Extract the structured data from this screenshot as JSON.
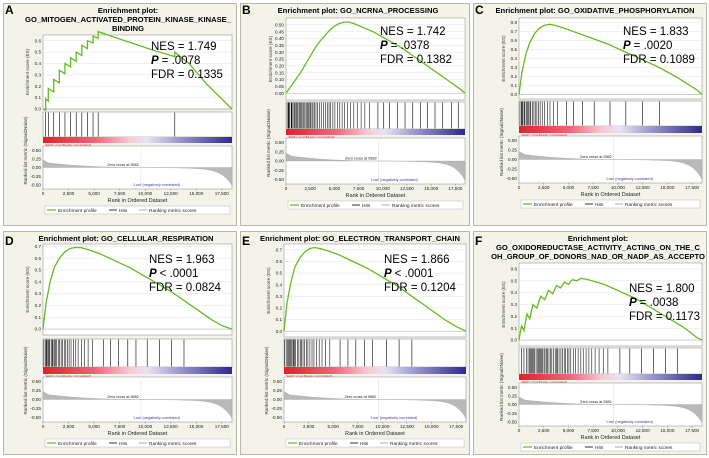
{
  "figure": {
    "accent_line_color": "#66bb22",
    "legend": {
      "enrichment_profile": "Enrichment profile",
      "hits": "Hits",
      "ranking": "Ranking metric scores"
    },
    "axis": {
      "enrichment_ylabel": "Enrichment score (ES)",
      "metric_ylabel": "Ranked list metric (Signal2Noise)",
      "xlabel": "Rank in Ordered Dataset",
      "high_label": "'High' (positively correlated)",
      "low_label": "'Low' (negatively correlated)",
      "zero_cross": "Zero cross at 9582"
    }
  },
  "chart_data": [
    {
      "type": "line",
      "letter": "A",
      "title_lines": [
        "Enrichment plot:",
        "GO_MITOGEN_ACTIVATED_PROTEIN_KINASE_KINASE_",
        "BINDING"
      ],
      "nes": "NES = 1.749",
      "p_label": "P",
      "p_value": "= .0078",
      "fdr": "FDR = 0.1335",
      "ylim": [
        0,
        0.65
      ],
      "yticks": [
        "0.0",
        "0.1",
        "0.2",
        "0.3",
        "0.4",
        "0.5",
        "0.6"
      ],
      "ytick_values": [
        0,
        0.1,
        0.2,
        0.3,
        0.4,
        0.5,
        0.6
      ],
      "xticks": [
        "0",
        "2,500",
        "5,000",
        "7,500",
        "10,000",
        "12,500",
        "15,000",
        "17,500"
      ],
      "xtick_values": [
        0,
        2500,
        5000,
        7500,
        10000,
        12500,
        15000,
        17500
      ],
      "xmax": 18500,
      "metric_ticks": [
        "0.50",
        "0.25",
        "0.00",
        "-0.25",
        "-0.50"
      ],
      "metric_tick_values": [
        0.5,
        0.25,
        0,
        -0.25,
        -0.5
      ],
      "es_x": [
        0,
        260,
        260,
        520,
        520,
        1050,
        1050,
        1600,
        1600,
        2150,
        2150,
        2700,
        2700,
        3250,
        3250,
        3800,
        3800,
        4350,
        4350,
        4900,
        4900,
        5400,
        5400,
        7000,
        9000,
        11000,
        12900,
        12900,
        14300,
        16000,
        18500
      ],
      "es_y": [
        0,
        -0.01,
        0.09,
        0.07,
        0.18,
        0.15,
        0.26,
        0.23,
        0.34,
        0.31,
        0.4,
        0.37,
        0.45,
        0.42,
        0.5,
        0.47,
        0.56,
        0.53,
        0.6,
        0.58,
        0.64,
        0.62,
        0.68,
        0.63,
        0.57,
        0.51,
        0.46,
        0.5,
        0.4,
        0.22,
        0.0
      ],
      "hits": [
        260,
        520,
        1050,
        1600,
        2150,
        2700,
        3250,
        3800,
        4350,
        4900,
        5400,
        12900
      ]
    },
    {
      "type": "line",
      "letter": "B",
      "title_lines": [
        "Enrichment plot: GO_NCRNA_PROCESSING"
      ],
      "nes": "NES = 1.742",
      "p_label": "P",
      "p_value": "= .0378",
      "fdr": "FDR = 0.1382",
      "ylim": [
        -0.05,
        0.55
      ],
      "yticks": [
        "0.00",
        "0.05",
        "0.10",
        "0.15",
        "0.20",
        "0.25",
        "0.30",
        "0.35",
        "0.40",
        "0.45",
        "0.50"
      ],
      "ytick_values": [
        0,
        0.05,
        0.1,
        0.15,
        0.2,
        0.25,
        0.3,
        0.35,
        0.4,
        0.45,
        0.5
      ],
      "xticks": [
        "0",
        "2,500",
        "5,000",
        "7,500",
        "10,000",
        "12,500",
        "15,000",
        "17,500"
      ],
      "xtick_values": [
        0,
        2500,
        5000,
        7500,
        10000,
        12500,
        15000,
        17500
      ],
      "xmax": 18500,
      "metric_ticks": [
        "0.50",
        "0.25",
        "0.00",
        "-0.25",
        "-0.50"
      ],
      "metric_tick_values": [
        0.5,
        0.25,
        0,
        -0.25,
        -0.5
      ],
      "es_x": [
        0,
        500,
        1000,
        1500,
        2000,
        2500,
        3000,
        3500,
        4000,
        4500,
        5000,
        5500,
        6000,
        6500,
        7000,
        8000,
        9000,
        10000,
        11000,
        12000,
        13000,
        14000,
        15000,
        16000,
        17000,
        18000,
        18500
      ],
      "es_y": [
        0,
        0.05,
        0.1,
        0.15,
        0.21,
        0.27,
        0.33,
        0.38,
        0.42,
        0.46,
        0.49,
        0.51,
        0.52,
        0.52,
        0.51,
        0.48,
        0.45,
        0.41,
        0.37,
        0.33,
        0.28,
        0.23,
        0.18,
        0.13,
        0.08,
        0.03,
        0.0
      ],
      "hits_dense": [
        0,
        9000
      ],
      "hits": [
        9500,
        10100,
        10700,
        11500,
        12300,
        13100,
        13900,
        14600,
        15400,
        16200,
        17100,
        17800
      ]
    },
    {
      "type": "line",
      "letter": "C",
      "title_lines": [
        "Enrichment plot: GO_OXIDATIVE_PHOSPHORYLATION"
      ],
      "nes": "NES = 1.833",
      "p_label": "P",
      "p_value": "= .0020",
      "fdr": "FDR = 0.1089",
      "ylim": [
        -0.05,
        0.85
      ],
      "yticks": [
        "0.0",
        "0.1",
        "0.2",
        "0.3",
        "0.4",
        "0.5",
        "0.6",
        "0.7",
        "0.8"
      ],
      "ytick_values": [
        0,
        0.1,
        0.2,
        0.3,
        0.4,
        0.5,
        0.6,
        0.7,
        0.8
      ],
      "xticks": [
        "0",
        "2,500",
        "5,000",
        "7,500",
        "10,000",
        "12,500",
        "15,000",
        "17,500"
      ],
      "xtick_values": [
        0,
        2500,
        5000,
        7500,
        10000,
        12500,
        15000,
        17500
      ],
      "xmax": 18500,
      "metric_ticks": [
        "0.50",
        "0.25",
        "0.00",
        "-0.25",
        "-0.50"
      ],
      "metric_tick_values": [
        0.5,
        0.25,
        0,
        -0.25,
        -0.5
      ],
      "es_x": [
        0,
        300,
        700,
        1100,
        1600,
        2100,
        2600,
        3100,
        3600,
        4200,
        5000,
        6000,
        7000,
        8000,
        9000,
        10000,
        11000,
        12000,
        13000,
        14000,
        15000,
        16000,
        17000,
        18000,
        18500
      ],
      "es_y": [
        0,
        0.25,
        0.45,
        0.58,
        0.68,
        0.74,
        0.77,
        0.78,
        0.77,
        0.75,
        0.72,
        0.68,
        0.64,
        0.6,
        0.56,
        0.51,
        0.46,
        0.41,
        0.36,
        0.31,
        0.25,
        0.19,
        0.12,
        0.05,
        0.0
      ],
      "hits_dense": [
        0,
        4200
      ],
      "hits": [
        4800,
        5500,
        6400,
        7600,
        9200,
        10800,
        12500,
        14200
      ]
    },
    {
      "type": "line",
      "letter": "D",
      "title_lines": [
        "Enrichment plot: GO_CELLULAR_RESPIRATION"
      ],
      "nes": "NES = 1.963",
      "p_label": "P",
      "p_value": "< .0001",
      "fdr": "FDR = 0.0824",
      "ylim": [
        -0.05,
        0.72
      ],
      "yticks": [
        "0.0",
        "0.1",
        "0.2",
        "0.3",
        "0.4",
        "0.5",
        "0.6",
        "0.7"
      ],
      "ytick_values": [
        0,
        0.1,
        0.2,
        0.3,
        0.4,
        0.5,
        0.6,
        0.7
      ],
      "xticks": [
        "0",
        "2,500",
        "5,000",
        "7,500",
        "10,000",
        "12,500",
        "15,000",
        "17,500"
      ],
      "xtick_values": [
        0,
        2500,
        5000,
        7500,
        10000,
        12500,
        15000,
        17500
      ],
      "xmax": 18500,
      "metric_ticks": [
        "0.50",
        "0.25",
        "0.00",
        "-0.25",
        "-0.50"
      ],
      "metric_tick_values": [
        0.5,
        0.25,
        0,
        -0.25,
        -0.5
      ],
      "es_x": [
        0,
        300,
        700,
        1100,
        1600,
        2100,
        2600,
        3100,
        3700,
        4500,
        5500,
        6500,
        7500,
        8500,
        9500,
        10500,
        11500,
        12500,
        13500,
        14500,
        15500,
        16500,
        17500,
        18500
      ],
      "es_y": [
        0,
        0.22,
        0.4,
        0.52,
        0.6,
        0.65,
        0.68,
        0.69,
        0.69,
        0.67,
        0.64,
        0.6,
        0.56,
        0.52,
        0.47,
        0.42,
        0.37,
        0.32,
        0.26,
        0.2,
        0.14,
        0.08,
        0.03,
        0.0
      ],
      "hits_dense": [
        0,
        5200
      ],
      "hits": [
        5900,
        6600,
        7400,
        8300,
        9100,
        10200,
        11400,
        12600,
        13800
      ]
    },
    {
      "type": "line",
      "letter": "E",
      "title_lines": [
        "Enrichment plot: GO_ELECTRON_TRANSPORT_CHAIN"
      ],
      "nes": "NES = 1.866",
      "p_label": "P",
      "p_value": "< .0001",
      "fdr": "FDR = 0.1204",
      "ylim": [
        -0.05,
        0.75
      ],
      "yticks": [
        "0.0",
        "0.1",
        "0.2",
        "0.3",
        "0.4",
        "0.5",
        "0.6",
        "0.7"
      ],
      "ytick_values": [
        0,
        0.1,
        0.2,
        0.3,
        0.4,
        0.5,
        0.6,
        0.7
      ],
      "xticks": [
        "0",
        "2,500",
        "5,000",
        "7,500",
        "10,000",
        "12,500",
        "15,000",
        "17,500"
      ],
      "xtick_values": [
        0,
        2500,
        5000,
        7500,
        10000,
        12500,
        15000,
        17500
      ],
      "xmax": 18500,
      "metric_ticks": [
        "0.50",
        "0.25",
        "0.00",
        "-0.25",
        "-0.50"
      ],
      "metric_tick_values": [
        0.5,
        0.25,
        0,
        -0.25,
        -0.5
      ],
      "es_x": [
        0,
        300,
        700,
        1100,
        1600,
        2100,
        2600,
        3100,
        3700,
        4500,
        5500,
        6500,
        7500,
        8500,
        9500,
        10500,
        11500,
        12500,
        13500,
        14500,
        15500,
        16500,
        17500,
        18500
      ],
      "es_y": [
        0,
        0.24,
        0.42,
        0.55,
        0.63,
        0.68,
        0.71,
        0.72,
        0.71,
        0.69,
        0.66,
        0.62,
        0.58,
        0.54,
        0.49,
        0.44,
        0.39,
        0.33,
        0.27,
        0.21,
        0.15,
        0.09,
        0.04,
        0.0
      ],
      "hits_dense": [
        0,
        5000
      ],
      "hits": [
        5700,
        6500,
        7300,
        8200,
        9000,
        10400,
        11700,
        13000
      ]
    },
    {
      "type": "line",
      "letter": "F",
      "title_lines": [
        "Enrichment plot:",
        "GO_OXIDOREDUCTASE_ACTIVITY_ACTING_ON_THE_C",
        "OH_GROUP_OF_DONORS_NAD_OR_NADP_AS_ACCEPTO"
      ],
      "nes": "NES = 1.800",
      "p_label": "P",
      "p_value": "= .0038",
      "fdr": "FDR = 0.1173",
      "ylim": [
        -0.05,
        0.65
      ],
      "yticks": [
        "0.0",
        "0.1",
        "0.2",
        "0.3",
        "0.4",
        "0.5",
        "0.6"
      ],
      "ytick_values": [
        0,
        0.1,
        0.2,
        0.3,
        0.4,
        0.5,
        0.6
      ],
      "xticks": [
        "0",
        "2,500",
        "5,000",
        "7,500",
        "10,000",
        "12,500",
        "15,000",
        "17,500"
      ],
      "xtick_values": [
        0,
        2500,
        5000,
        7500,
        10000,
        12500,
        15000,
        17500
      ],
      "xmax": 18500,
      "metric_ticks": [
        "0.50",
        "0.25",
        "0.00",
        "-0.25",
        "-0.50"
      ],
      "metric_tick_values": [
        0.5,
        0.25,
        0,
        -0.25,
        -0.5
      ],
      "es_x": [
        0,
        250,
        500,
        800,
        1100,
        1400,
        1800,
        2200,
        2600,
        3000,
        3400,
        3800,
        4200,
        4600,
        5000,
        5400,
        5800,
        6300,
        7000,
        7800,
        8600,
        9400,
        10200,
        11000,
        11800,
        12600,
        13400,
        14200,
        15000,
        15800,
        16600,
        17400,
        18000,
        18500
      ],
      "es_y": [
        0,
        0.12,
        0.08,
        0.22,
        0.18,
        0.3,
        0.27,
        0.37,
        0.34,
        0.42,
        0.39,
        0.46,
        0.44,
        0.49,
        0.47,
        0.51,
        0.5,
        0.52,
        0.51,
        0.49,
        0.47,
        0.44,
        0.41,
        0.38,
        0.35,
        0.31,
        0.27,
        0.23,
        0.19,
        0.15,
        0.11,
        0.06,
        0.02,
        0.0
      ],
      "hits_dense": [
        700,
        9500
      ],
      "hits": [
        250,
        500,
        10200,
        11200,
        12400,
        13600,
        14800,
        16000
      ]
    }
  ]
}
